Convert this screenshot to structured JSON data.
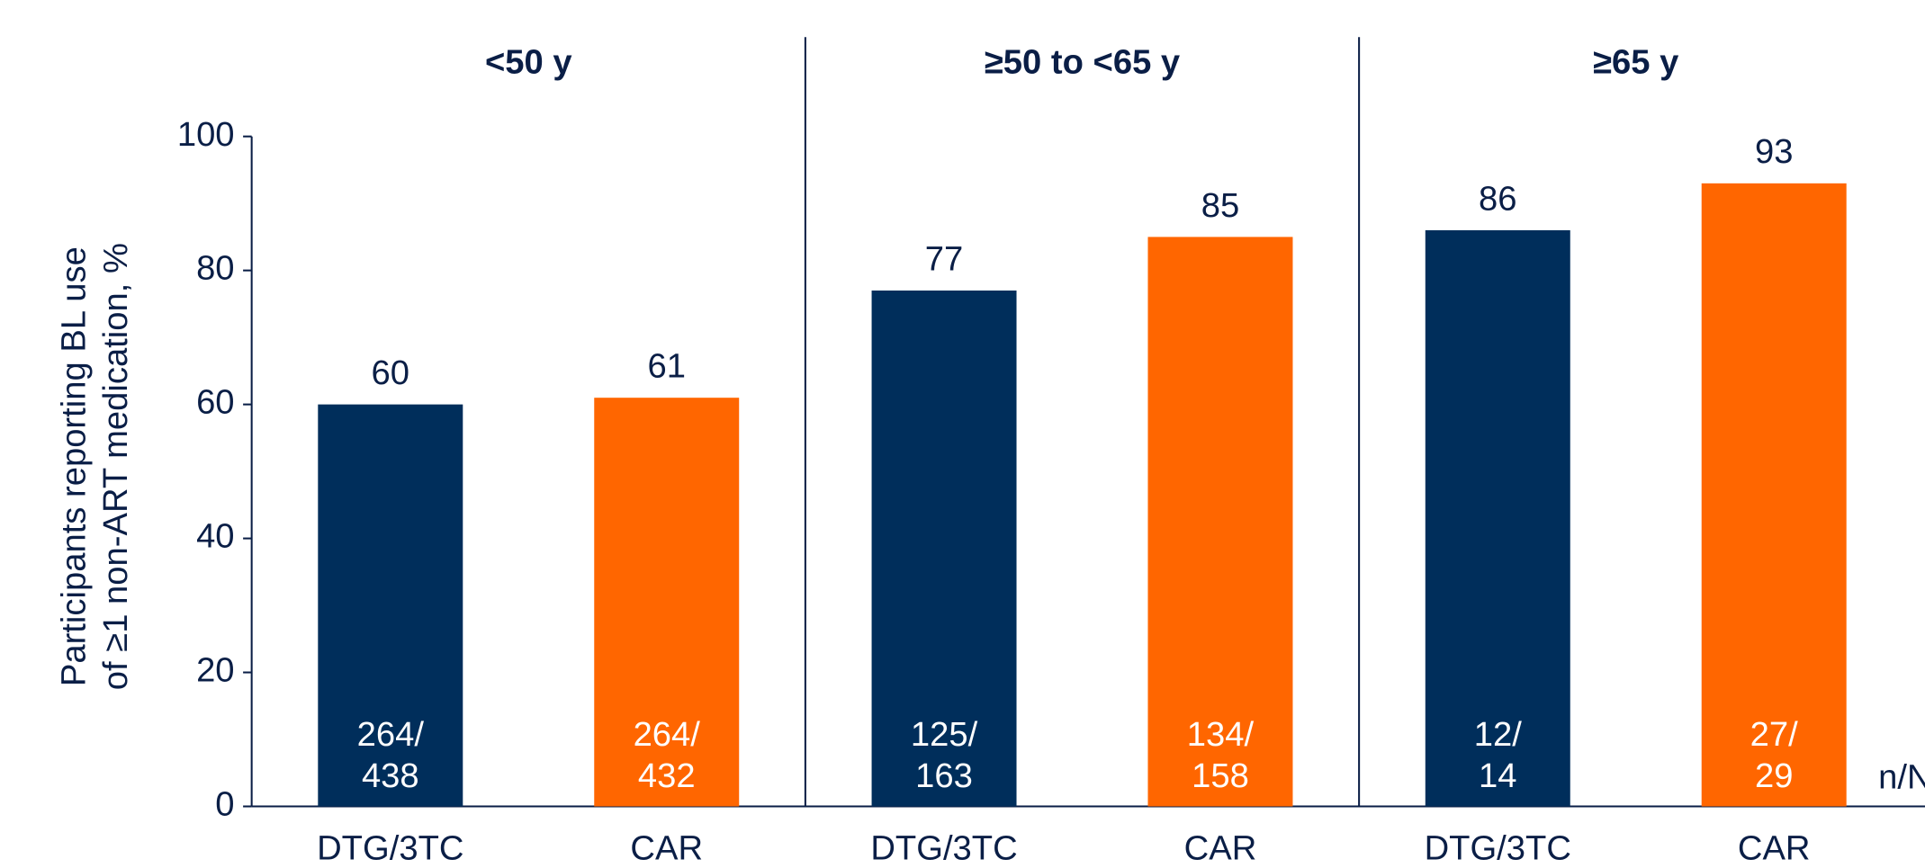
{
  "chart_data": {
    "type": "bar",
    "y_label": [
      "Participants reporting BL use",
      "of ≥1 non-ART medication, %"
    ],
    "groups": [
      "<50 y",
      "≥50 to <65 y",
      "≥65 y"
    ],
    "series": [
      {
        "name": "DTG/3TC",
        "color": "#002e5b",
        "values": [
          60,
          77,
          86
        ],
        "n_labels": [
          [
            "264/",
            "438"
          ],
          [
            "125/",
            "163"
          ],
          [
            "12/",
            "14"
          ]
        ]
      },
      {
        "name": "CAR",
        "color": "#ff6600",
        "values": [
          61,
          85,
          93
        ],
        "n_labels": [
          [
            "264/",
            "432"
          ],
          [
            "134/",
            "158"
          ],
          [
            "27/",
            "29"
          ]
        ]
      }
    ],
    "n_label_title": "n/N",
    "ylim": [
      0,
      100
    ],
    "yticks": [
      0,
      20,
      40,
      60,
      80,
      100
    ]
  }
}
